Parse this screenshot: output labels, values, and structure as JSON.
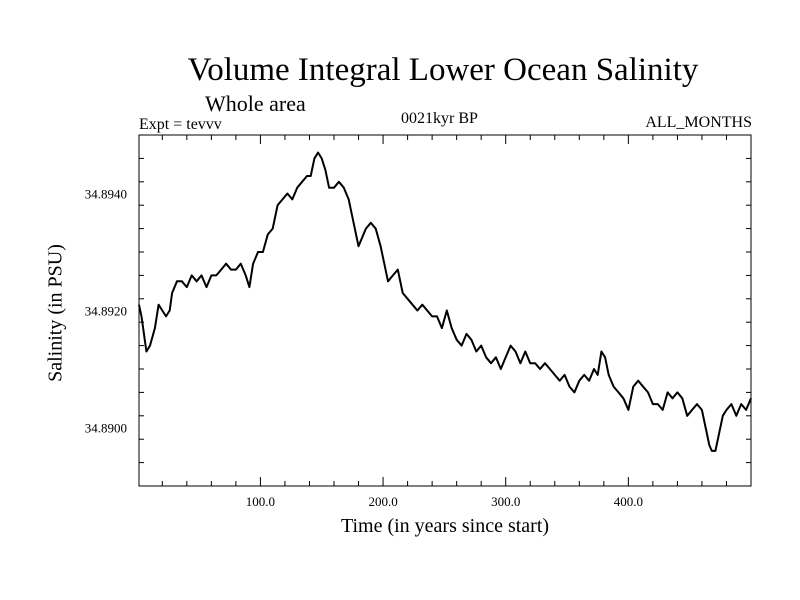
{
  "chart_data": {
    "type": "line",
    "title": "Volume Integral Lower Ocean Salinity",
    "subtitle": "Whole area",
    "annotations": {
      "left": "Expt = tevvv",
      "center": "0021kyr BP",
      "right": "ALL_MONTHS"
    },
    "xlabel": "Time (in years since start)",
    "ylabel": "Salinity (in PSU)",
    "xlim": [
      1,
      500
    ],
    "ylim": [
      34.889,
      34.895
    ],
    "xticks": [
      100.0,
      200.0,
      300.0,
      400.0
    ],
    "xtick_labels": [
      "100.0",
      "200.0",
      "300.0",
      "400.0"
    ],
    "yticks": [
      34.89,
      34.892,
      34.894
    ],
    "ytick_labels": [
      "34.8900",
      "34.8920",
      "34.8940"
    ],
    "grid": false,
    "series": [
      {
        "name": "Salinity",
        "color": "#000000",
        "x": [
          1,
          3,
          7,
          10,
          14,
          17,
          20,
          23,
          26,
          28,
          32,
          36,
          40,
          44,
          48,
          52,
          56,
          60,
          64,
          68,
          72,
          76,
          80,
          84,
          88,
          91,
          94,
          98,
          102,
          106,
          110,
          114,
          118,
          122,
          126,
          130,
          134,
          138,
          141,
          144,
          147,
          150,
          153,
          156,
          160,
          164,
          168,
          172,
          176,
          180,
          182,
          186,
          190,
          194,
          198,
          201,
          204,
          208,
          212,
          216,
          220,
          224,
          228,
          232,
          236,
          240,
          244,
          248,
          252,
          256,
          260,
          264,
          268,
          272,
          276,
          280,
          284,
          288,
          292,
          296,
          300,
          304,
          308,
          312,
          316,
          320,
          324,
          328,
          332,
          336,
          340,
          344,
          348,
          352,
          356,
          360,
          364,
          368,
          372,
          375,
          378,
          381,
          384,
          388,
          392,
          396,
          400,
          404,
          408,
          412,
          416,
          420,
          424,
          428,
          432,
          436,
          440,
          444,
          448,
          452,
          456,
          460,
          463,
          466,
          468,
          471,
          474,
          477,
          480,
          484,
          488,
          492,
          496,
          500
        ],
        "values": [
          34.8921,
          34.8919,
          34.8913,
          34.8914,
          34.8917,
          34.8921,
          34.892,
          34.8919,
          34.892,
          34.8923,
          34.8925,
          34.8925,
          34.8924,
          34.8926,
          34.8925,
          34.8926,
          34.8924,
          34.8926,
          34.8926,
          34.8927,
          34.8928,
          34.8927,
          34.8927,
          34.8928,
          34.8926,
          34.8924,
          34.8928,
          34.893,
          34.893,
          34.8933,
          34.8934,
          34.8938,
          34.8939,
          34.894,
          34.8939,
          34.8941,
          34.8942,
          34.8943,
          34.8943,
          34.8946,
          34.8947,
          34.8946,
          34.8944,
          34.8941,
          34.8941,
          34.8942,
          34.8941,
          34.8939,
          34.8935,
          34.8931,
          34.8932,
          34.8934,
          34.8935,
          34.8934,
          34.8931,
          34.8928,
          34.8925,
          34.8926,
          34.8927,
          34.8923,
          34.8922,
          34.8921,
          34.892,
          34.8921,
          34.892,
          34.8919,
          34.8919,
          34.8917,
          34.892,
          34.8917,
          34.8915,
          34.8914,
          34.8916,
          34.8915,
          34.8913,
          34.8914,
          34.8912,
          34.8911,
          34.8912,
          34.891,
          34.8912,
          34.8914,
          34.8913,
          34.8911,
          34.8913,
          34.8911,
          34.8911,
          34.891,
          34.8911,
          34.891,
          34.8909,
          34.8908,
          34.8909,
          34.8907,
          34.8906,
          34.8908,
          34.8909,
          34.8908,
          34.891,
          34.8909,
          34.8913,
          34.8912,
          34.8909,
          34.8907,
          34.8906,
          34.8905,
          34.8903,
          34.8907,
          34.8908,
          34.8907,
          34.8906,
          34.8904,
          34.8904,
          34.8903,
          34.8906,
          34.8905,
          34.8906,
          34.8905,
          34.8902,
          34.8903,
          34.8904,
          34.8903,
          34.89,
          34.8897,
          34.8896,
          34.8896,
          34.8899,
          34.8902,
          34.8903,
          34.8904,
          34.8902,
          34.8904,
          34.8903,
          34.8905
        ]
      }
    ]
  }
}
